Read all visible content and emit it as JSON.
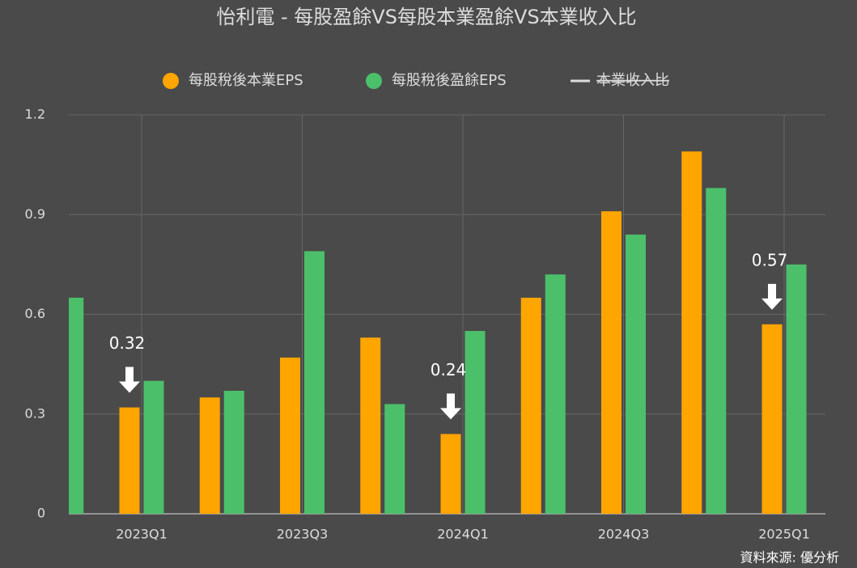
{
  "chart_data": {
    "type": "bar",
    "title": "怡利電 - 每股盈餘VS每股本業盈餘VS本業收入比",
    "categories": [
      null,
      "2023Q1",
      null,
      "2023Q3",
      null,
      "2024Q1",
      null,
      "2024Q3",
      null,
      "2025Q1"
    ],
    "series": [
      {
        "name": "每股稅後本業EPS",
        "color": "#ffa500",
        "values": [
          null,
          0.32,
          0.35,
          0.47,
          0.53,
          0.24,
          0.65,
          0.91,
          1.09,
          0.57
        ],
        "value_labels": [
          null,
          "0.32",
          null,
          null,
          null,
          "0.24",
          null,
          null,
          null,
          "0.57"
        ]
      },
      {
        "name": "每股稅後盈餘EPS",
        "color": "#4cbf6b",
        "values": [
          0.65,
          0.4,
          0.37,
          0.79,
          0.33,
          0.55,
          0.72,
          0.84,
          0.98,
          0.75
        ]
      },
      {
        "name": "本業收入比",
        "color": "#dddddd",
        "hidden": true,
        "values": [
          null,
          null,
          null,
          null,
          null,
          null,
          null,
          null,
          null,
          null
        ]
      }
    ],
    "ylim": [
      0,
      1.2
    ],
    "yticks": [
      0,
      0.3,
      0.6,
      0.9,
      1.2
    ],
    "grid": true,
    "source": "資料來源: 優分析"
  }
}
